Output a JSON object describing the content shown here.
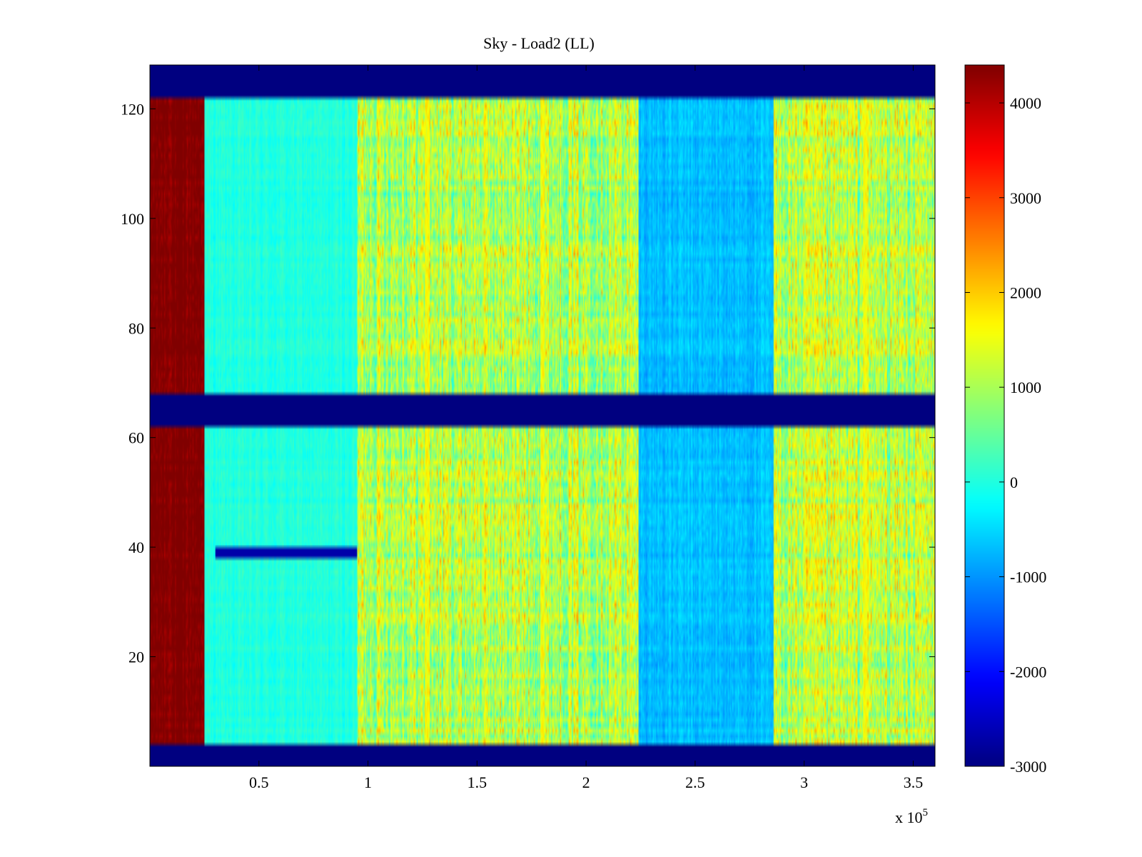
{
  "chart_data": {
    "type": "heatmap",
    "title": "Sky - Load2 (LL)",
    "xlabel": "",
    "ylabel": "",
    "x_multiplier_label": "x 10",
    "x_multiplier_exponent": "5",
    "xlim": [
      0,
      3.6
    ],
    "ylim": [
      0,
      128
    ],
    "x_ticks": [
      0.5,
      1,
      1.5,
      2,
      2.5,
      3,
      3.5
    ],
    "x_tick_labels": [
      "0.5",
      "1",
      "1.5",
      "2",
      "2.5",
      "3",
      "3.5"
    ],
    "y_ticks": [
      20,
      40,
      60,
      80,
      100,
      120
    ],
    "y_tick_labels": [
      "20",
      "40",
      "60",
      "80",
      "100",
      "120"
    ],
    "colorbar": {
      "colormap": "jet",
      "range": [
        -3000,
        4400
      ],
      "ticks": [
        4000,
        3000,
        2000,
        1000,
        0,
        -1000,
        -2000,
        -3000
      ],
      "tick_labels": [
        "4000",
        "3000",
        "2000",
        "1000",
        "0",
        "-1000",
        "-2000",
        "-3000"
      ]
    },
    "row_bands": [
      {
        "y_from": 0,
        "y_to": 4,
        "value": -3000
      },
      {
        "y_from": 4,
        "y_to": 62,
        "value": "data"
      },
      {
        "y_from": 62,
        "y_to": 68,
        "value": -3000
      },
      {
        "y_from": 68,
        "y_to": 122,
        "value": "data"
      },
      {
        "y_from": 122,
        "y_to": 128,
        "value": -3000
      }
    ],
    "x_segments": [
      {
        "x_from": 0,
        "x_to": 0.25,
        "mean": 4400,
        "spread": 400
      },
      {
        "x_from": 0.25,
        "x_to": 0.95,
        "mean": 0,
        "spread": 300
      },
      {
        "x_from": 0.95,
        "x_to": 2.24,
        "mean": 1100,
        "spread": 1300
      },
      {
        "x_from": 2.24,
        "x_to": 2.86,
        "mean": -700,
        "spread": 400
      },
      {
        "x_from": 2.86,
        "x_to": 3.6,
        "mean": 1100,
        "spread": 1300
      }
    ],
    "stripes": [
      {
        "x": 1.27,
        "value": 1600
      },
      {
        "x": 1.8,
        "value": 1600
      },
      {
        "x": 3.28,
        "value": 1600
      }
    ],
    "anomaly_row": {
      "y": 39,
      "x_from": 0.3,
      "x_to": 0.95,
      "value": -2700
    }
  }
}
